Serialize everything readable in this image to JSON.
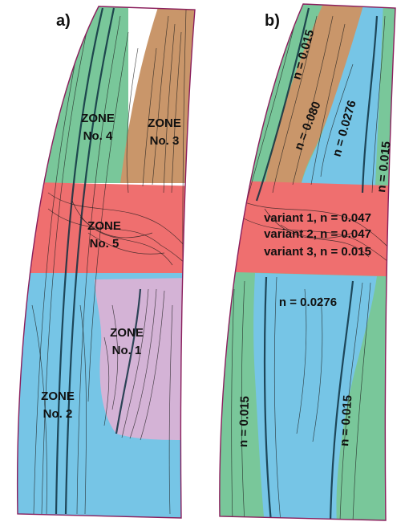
{
  "panels": {
    "a": {
      "label": "a)",
      "zones": [
        {
          "id": "zone4",
          "line1": "ZONE",
          "line2": "No. 4",
          "color": "#79c79a"
        },
        {
          "id": "zone3",
          "line1": "ZONE",
          "line2": "No. 3",
          "color": "#c9966a"
        },
        {
          "id": "zone5",
          "line1": "ZONE",
          "line2": "No. 5",
          "color": "#ef6f6f"
        },
        {
          "id": "zone1",
          "line1": "ZONE",
          "line2": "No. 1",
          "color": "#d4b3d6"
        },
        {
          "id": "zone2",
          "line1": "ZONE",
          "line2": "No. 2",
          "color": "#76c5e6"
        }
      ]
    },
    "b": {
      "label": "b)",
      "labels": {
        "top_left": "n = 0.015",
        "brown": "n = 0.080",
        "blue_top": "n = 0.0276",
        "top_right": "n = 0.015",
        "variant1": "variant 1, n = 0.047",
        "variant2": "variant 2, n = 0.047",
        "variant3": "variant 3, n = 0.015",
        "blue_bottom": "n = 0.0276",
        "bottom_left": "n = 0.015",
        "bottom_right": "n = 0.015"
      }
    }
  },
  "colors": {
    "green": "#79c79a",
    "brown": "#c9966a",
    "red": "#ef6f6f",
    "lilac": "#d4b3d6",
    "blue": "#76c5e6",
    "outline": "#8a1e5c"
  }
}
